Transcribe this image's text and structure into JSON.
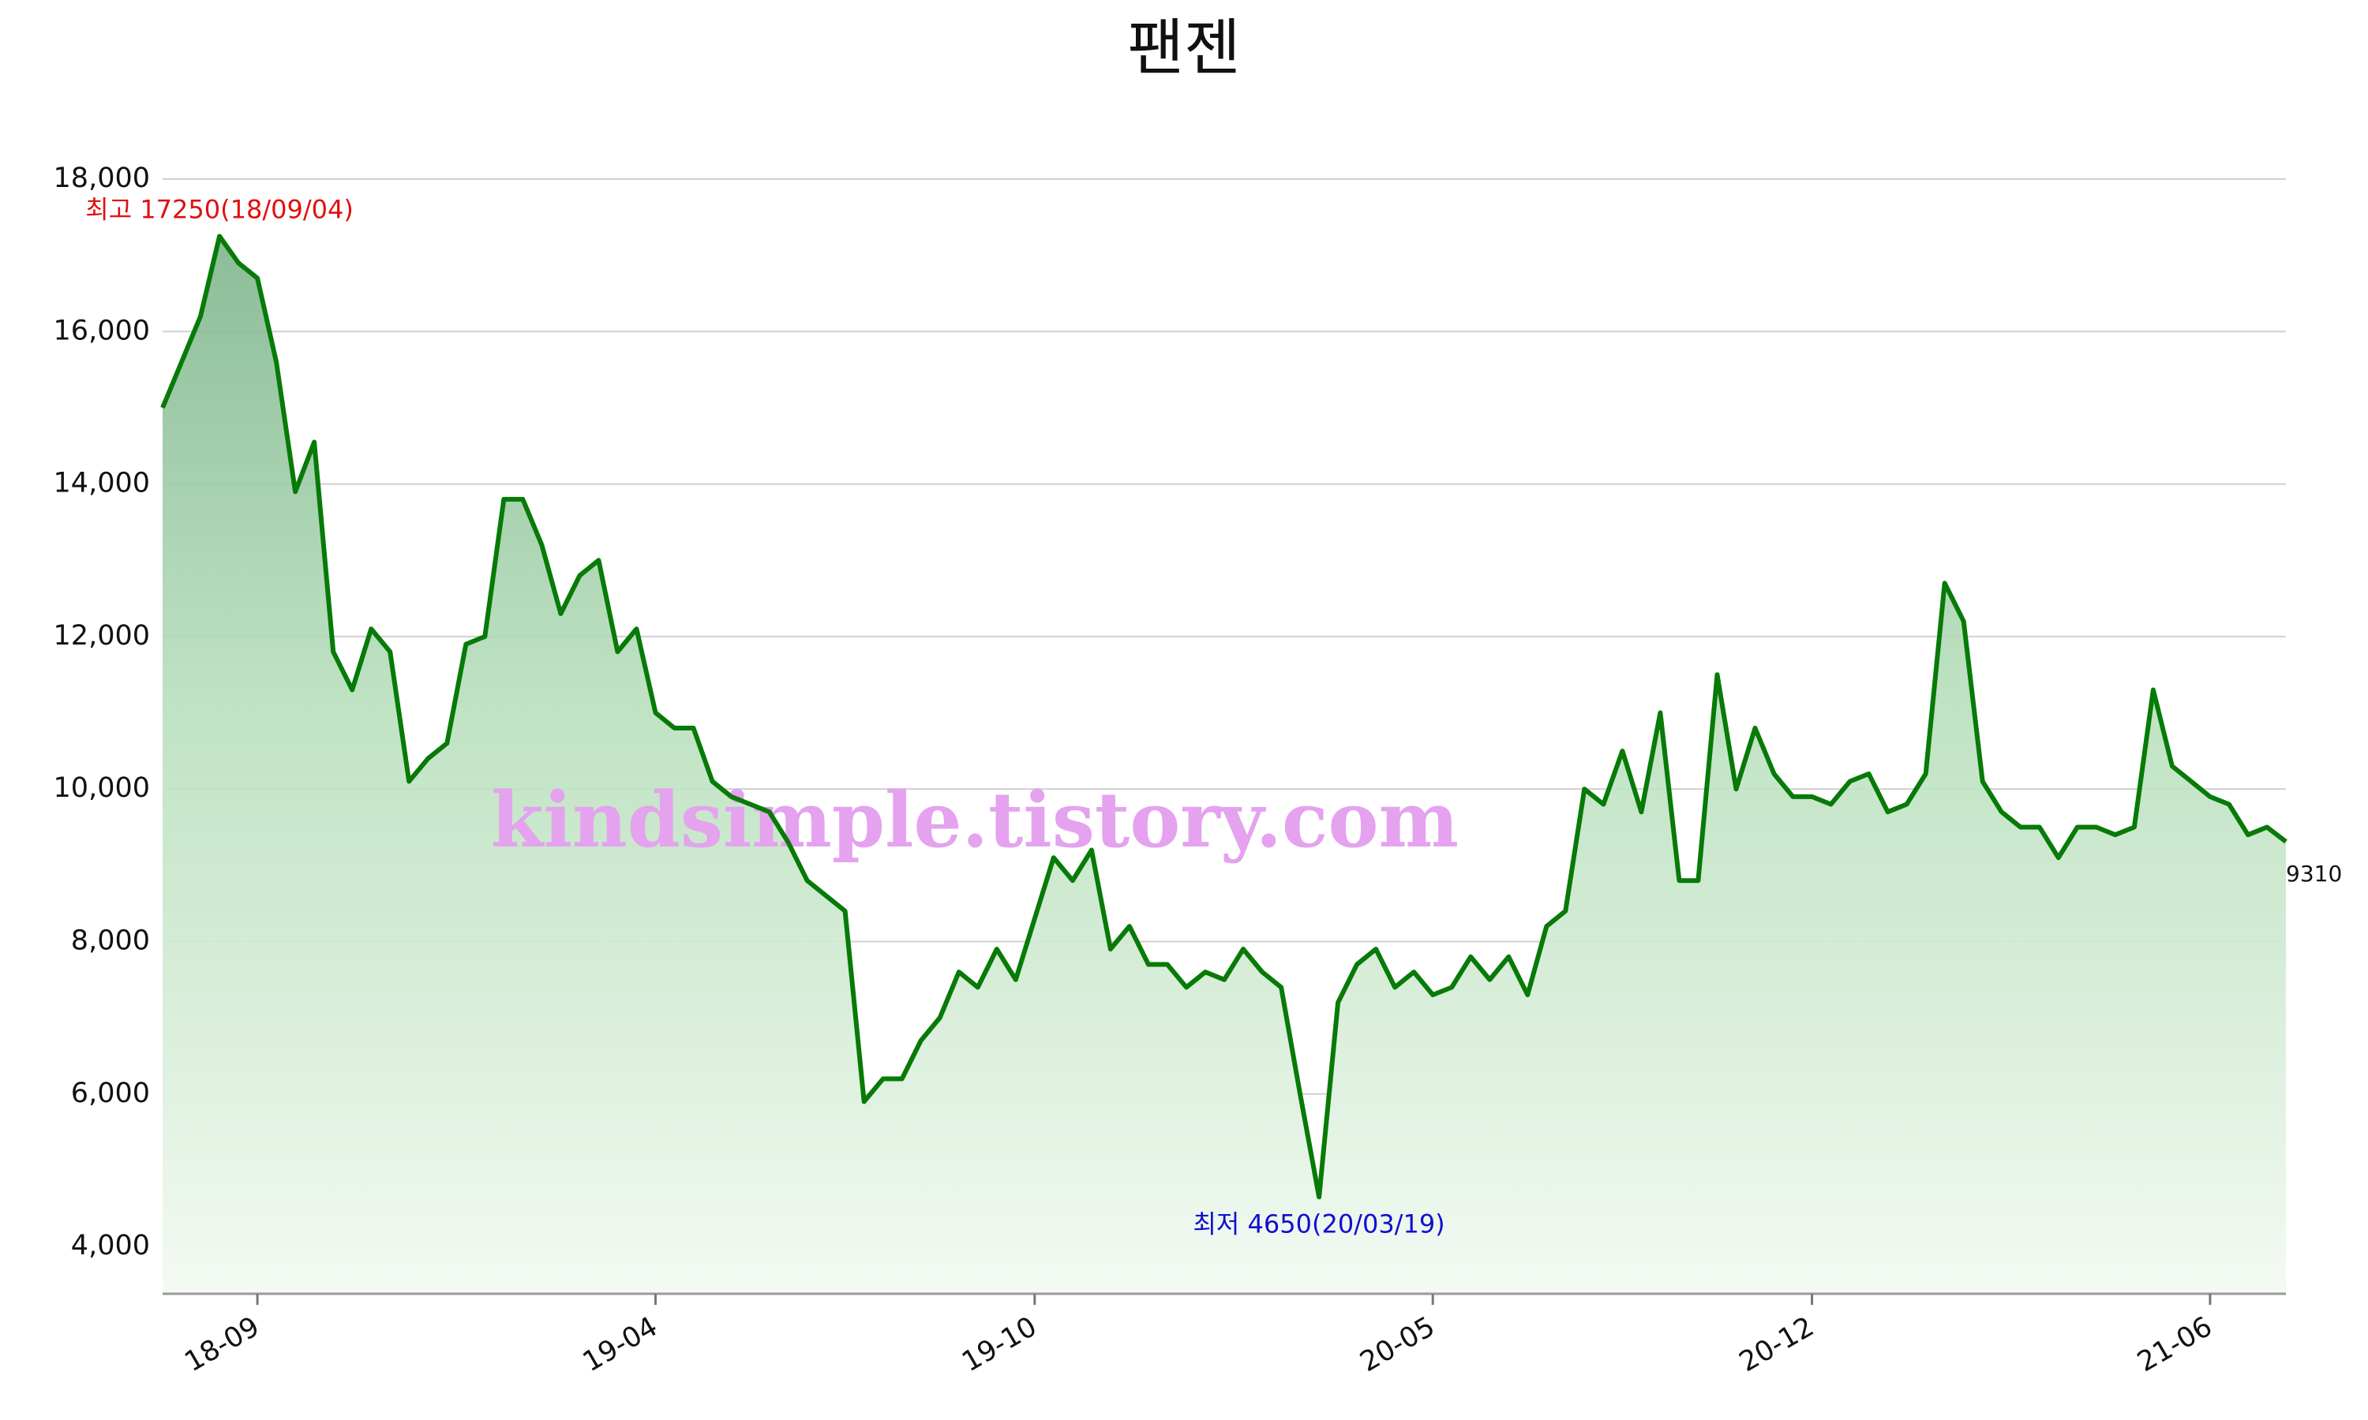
{
  "chart_data": {
    "type": "line",
    "title": "팬젠",
    "watermark": "kindsimple.tistory.com",
    "max_label": "최고 17250(18/09/04)",
    "min_label": "최저 4650(20/03/19)",
    "categories": [
      null,
      null,
      null,
      null,
      null,
      "18-09",
      null,
      null,
      null,
      null,
      null,
      null,
      null,
      null,
      null,
      null,
      null,
      null,
      null,
      null,
      null,
      null,
      null,
      null,
      null,
      null,
      "19-04",
      null,
      null,
      null,
      null,
      null,
      null,
      null,
      null,
      null,
      null,
      null,
      null,
      null,
      null,
      null,
      null,
      null,
      null,
      null,
      "19-10",
      null,
      null,
      null,
      null,
      null,
      null,
      null,
      null,
      null,
      null,
      null,
      null,
      null,
      null,
      null,
      null,
      null,
      null,
      null,
      null,
      "20-05",
      null,
      null,
      null,
      null,
      null,
      null,
      null,
      null,
      null,
      null,
      null,
      null,
      null,
      null,
      null,
      null,
      null,
      null,
      null,
      "20-12",
      null,
      null,
      null,
      null,
      null,
      null,
      null,
      null,
      null,
      null,
      null,
      null,
      null,
      null,
      null,
      null,
      null,
      null,
      null,
      null,
      "21-06",
      null,
      null,
      null,
      null
    ],
    "values": [
      15000,
      15600,
      16200,
      17250,
      16900,
      16700,
      15600,
      13900,
      14550,
      11800,
      11300,
      12100,
      11800,
      10100,
      10400,
      10600,
      11900,
      12000,
      13800,
      13800,
      13200,
      12300,
      12800,
      13000,
      11800,
      12100,
      11000,
      10800,
      10800,
      10100,
      9900,
      9800,
      9700,
      9300,
      8800,
      8600,
      8400,
      5900,
      6200,
      6200,
      6700,
      7000,
      7600,
      7400,
      7900,
      7500,
      8300,
      9100,
      8800,
      9200,
      7900,
      8200,
      7700,
      7700,
      7400,
      7600,
      7500,
      7900,
      7600,
      7400,
      6000,
      4650,
      7200,
      7700,
      7900,
      7400,
      7600,
      7300,
      7400,
      7800,
      7500,
      7800,
      7300,
      8200,
      8400,
      10000,
      9800,
      10500,
      9700,
      11000,
      8800,
      8800,
      11500,
      10000,
      10800,
      10200,
      9900,
      9900,
      9800,
      10100,
      10200,
      9700,
      9800,
      10200,
      12700,
      12200,
      10100,
      9700,
      9500,
      9500,
      9100,
      9500,
      9500,
      9400,
      9500,
      11300,
      10300,
      10100,
      9900,
      9800,
      9400,
      9500,
      9310
    ],
    "color": "#077a07",
    "max_color": "#e01010",
    "min_color": "#1010d0",
    "watermark_color": "#e4a2ef",
    "ylim": [
      3380,
      18000
    ],
    "yticks": [
      {
        "value": 4000,
        "label": "4,000"
      },
      {
        "value": 6000,
        "label": "6,000"
      },
      {
        "value": 8000,
        "label": "8,000"
      },
      {
        "value": 10000,
        "label": "10,000"
      },
      {
        "value": 12000,
        "label": "12,000"
      },
      {
        "value": 14000,
        "label": "14,000"
      },
      {
        "value": 16000,
        "label": "16,000"
      },
      {
        "value": 18000,
        "label": "18,000"
      }
    ],
    "grid": true
  }
}
